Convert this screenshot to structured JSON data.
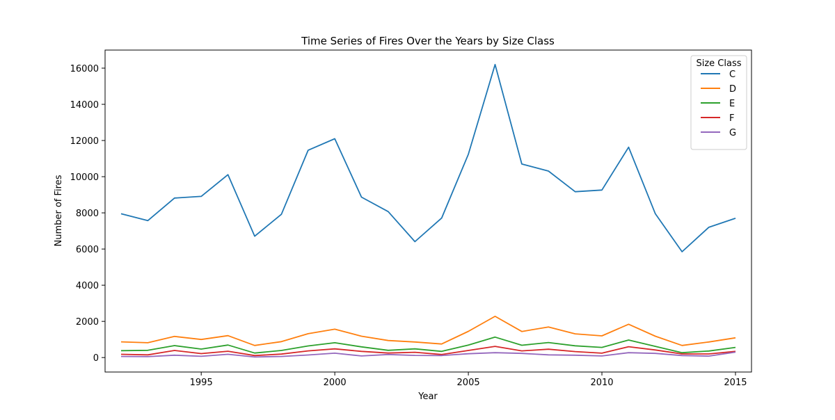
{
  "chart_data": {
    "type": "line",
    "title": "Time Series of Fires Over the Years by Size Class",
    "xlabel": "Year",
    "ylabel": "Number of Fires",
    "xlim": [
      1991.4,
      2015.6
    ],
    "ylim": [
      -800,
      17000
    ],
    "xticks": [
      1995,
      2000,
      2005,
      2010,
      2015
    ],
    "yticks": [
      0,
      2000,
      4000,
      6000,
      8000,
      10000,
      12000,
      14000,
      16000
    ],
    "grid": false,
    "legend": {
      "title": "Size Class",
      "placement": "upper right"
    },
    "x": [
      1992,
      1993,
      1994,
      1995,
      1996,
      1997,
      1998,
      1999,
      2000,
      2001,
      2002,
      2003,
      2004,
      2005,
      2006,
      2007,
      2008,
      2009,
      2010,
      2011,
      2012,
      2013,
      2014,
      2015
    ],
    "series": [
      {
        "name": "C",
        "color": "#1f77b4",
        "values": [
          7950,
          7570,
          8820,
          8910,
          10110,
          6710,
          7920,
          11460,
          12100,
          8870,
          8070,
          6410,
          7710,
          11240,
          16200,
          10700,
          10310,
          9170,
          9260,
          11630,
          7950,
          5850,
          7200,
          7700
        ]
      },
      {
        "name": "D",
        "color": "#ff7f0e",
        "values": [
          870,
          820,
          1170,
          1000,
          1210,
          670,
          880,
          1320,
          1570,
          1180,
          940,
          860,
          750,
          1450,
          2280,
          1440,
          1690,
          1310,
          1200,
          1840,
          1180,
          670,
          860,
          1090
        ]
      },
      {
        "name": "E",
        "color": "#2ca02c",
        "values": [
          380,
          400,
          660,
          470,
          690,
          250,
          390,
          640,
          820,
          590,
          400,
          480,
          340,
          690,
          1130,
          680,
          830,
          650,
          560,
          970,
          620,
          270,
          360,
          560
        ]
      },
      {
        "name": "F",
        "color": "#d62728",
        "values": [
          180,
          150,
          390,
          220,
          350,
          110,
          190,
          370,
          480,
          340,
          250,
          290,
          170,
          390,
          620,
          370,
          460,
          330,
          240,
          600,
          420,
          200,
          200,
          340
        ]
      },
      {
        "name": "G",
        "color": "#9467bd",
        "values": [
          60,
          50,
          130,
          70,
          180,
          30,
          60,
          140,
          240,
          90,
          170,
          120,
          110,
          210,
          270,
          230,
          150,
          130,
          90,
          270,
          230,
          110,
          80,
          300
        ]
      }
    ]
  }
}
